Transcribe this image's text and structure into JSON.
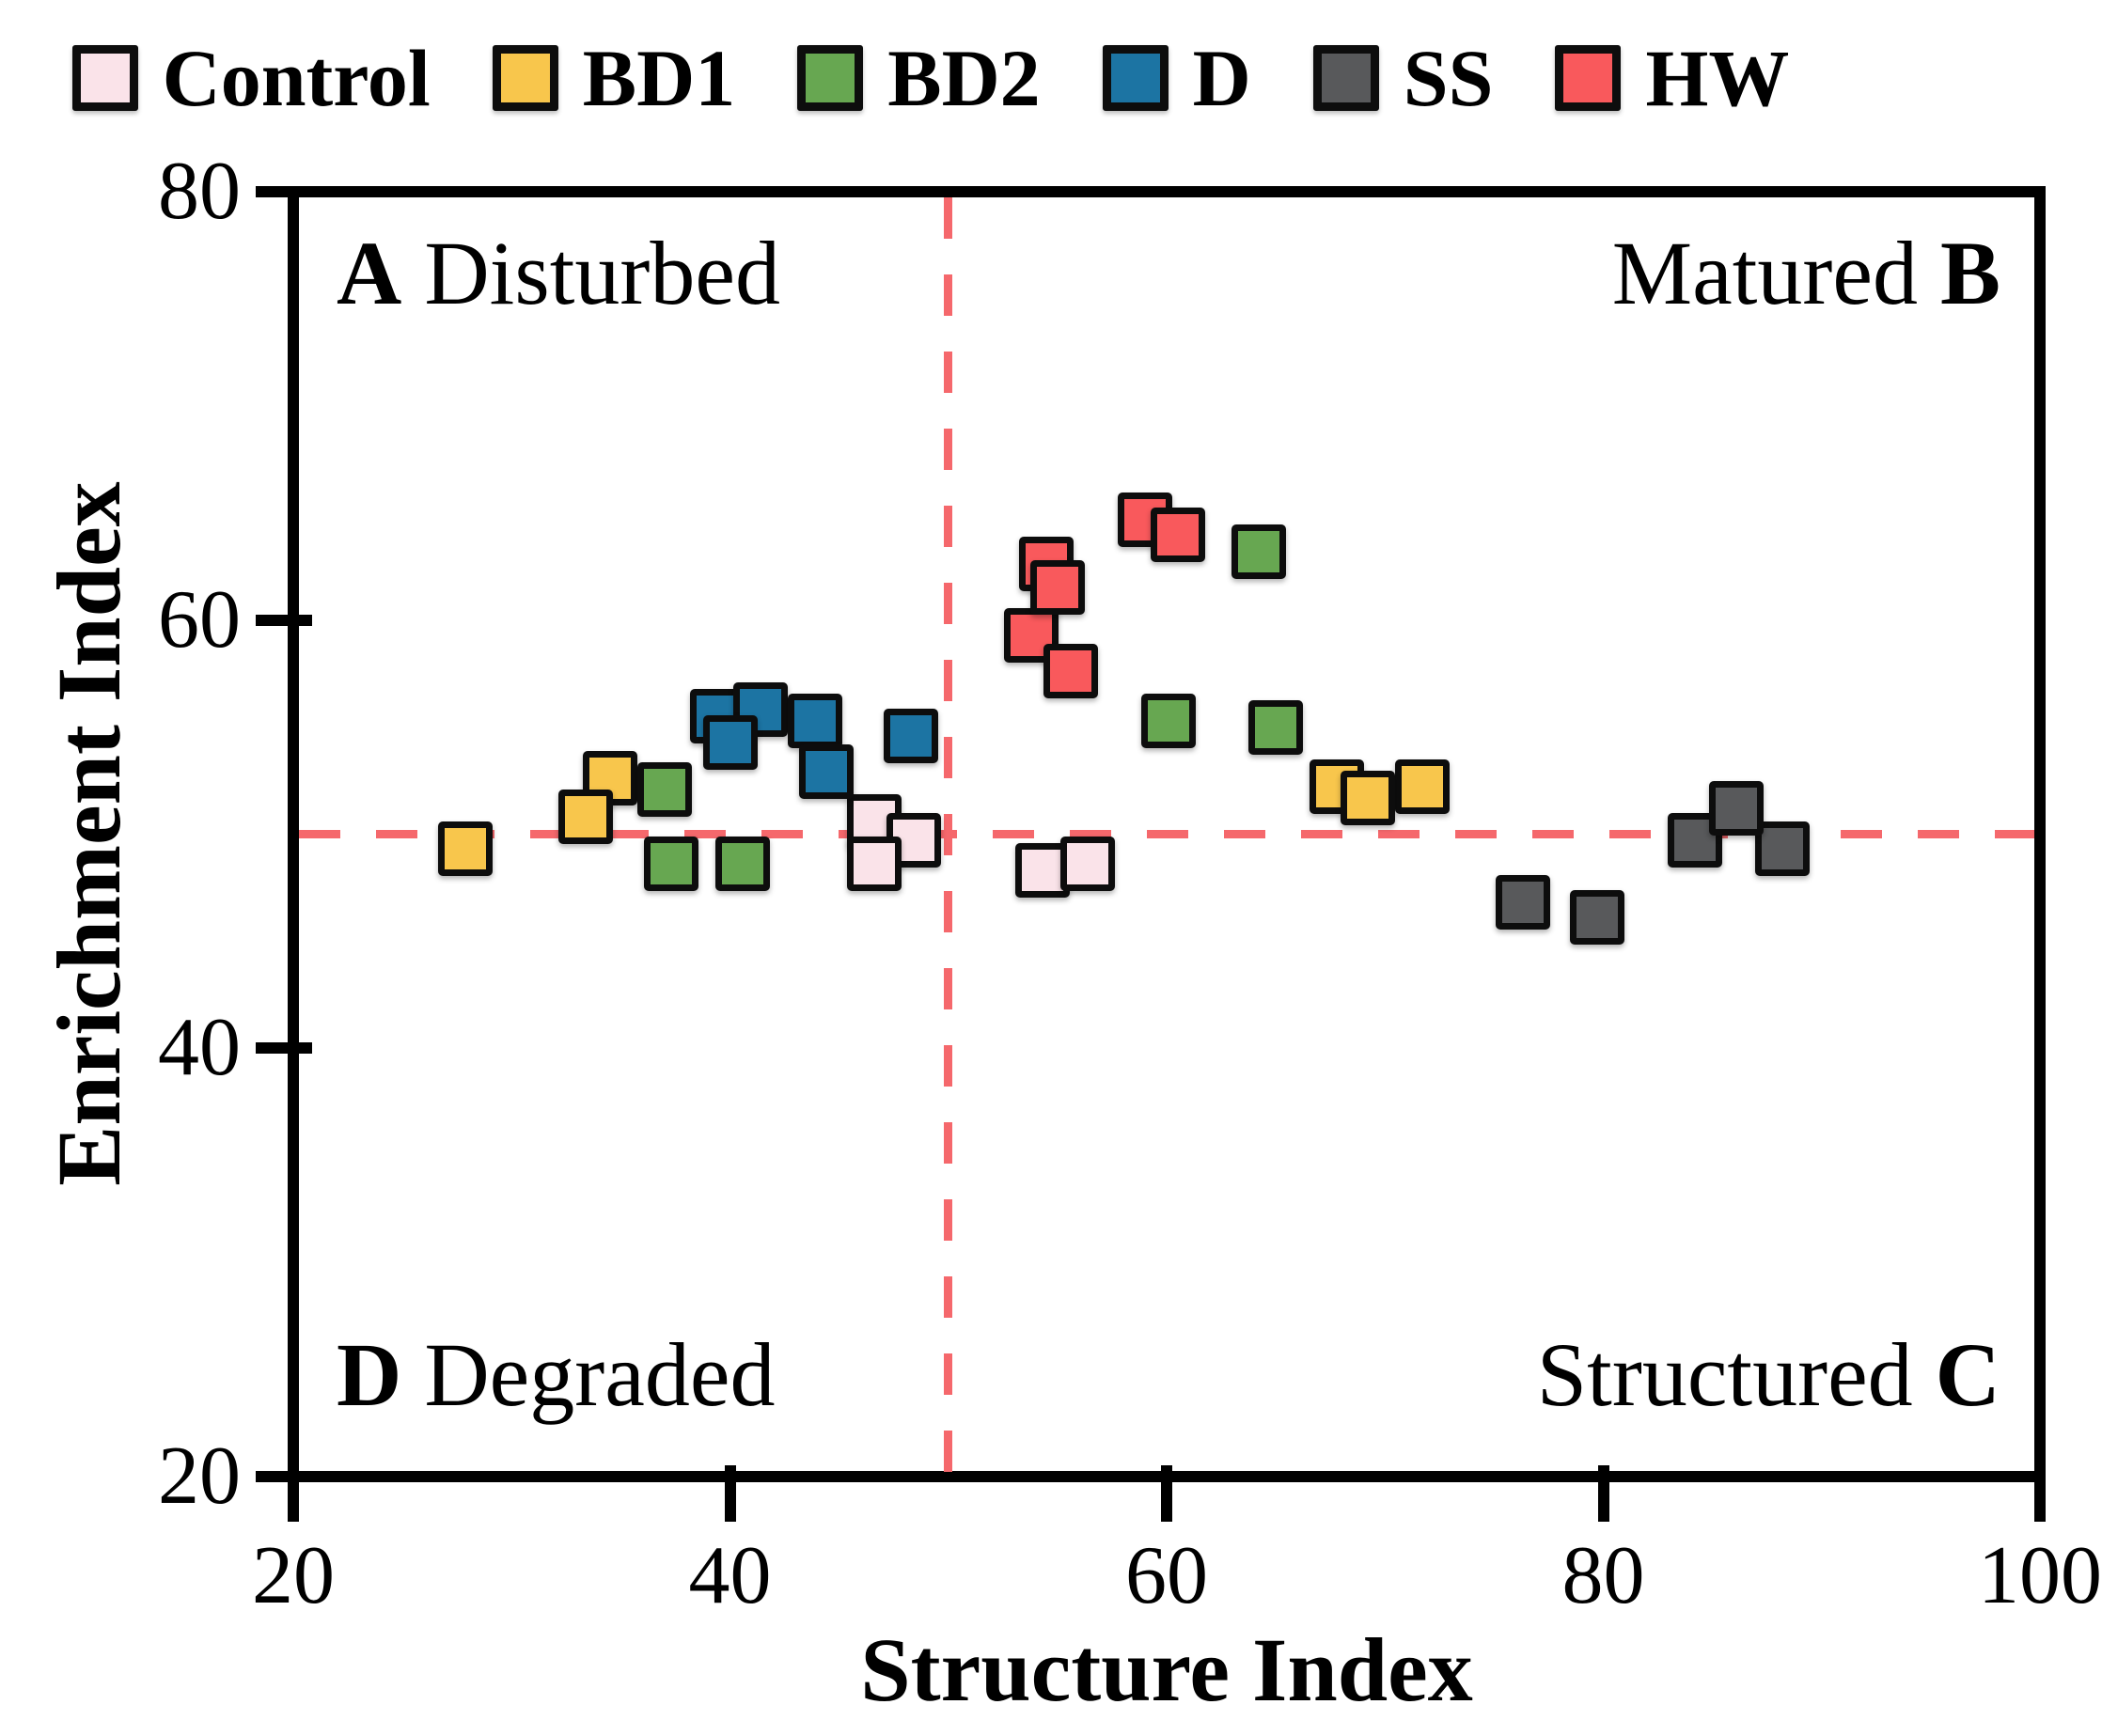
{
  "chart_data": {
    "type": "scatter",
    "title": "",
    "xlabel": "Structure Index",
    "ylabel": "Enrichment Index",
    "xlim": [
      20,
      100
    ],
    "ylim": [
      20,
      80
    ],
    "xticks": [
      20,
      40,
      60,
      80,
      100
    ],
    "yticks": [
      20,
      40,
      60,
      80
    ],
    "grid": false,
    "legend_position": "top",
    "marker_shape": "square",
    "reference_lines": {
      "x": 50,
      "y": 50,
      "style": "dashed",
      "color": "#f5686c"
    },
    "series": [
      {
        "name": "Control",
        "color": "#fae3e9",
        "points": [
          [
            46.6,
            50.6
          ],
          [
            48.4,
            49.7
          ],
          [
            46.6,
            48.6
          ],
          [
            54.3,
            48.3
          ],
          [
            56.4,
            48.6
          ]
        ]
      },
      {
        "name": "BD1",
        "color": "#f8c64c",
        "points": [
          [
            27.9,
            49.3
          ],
          [
            34.5,
            52.6
          ],
          [
            33.4,
            50.8
          ],
          [
            67.8,
            52.2
          ],
          [
            71.7,
            52.2
          ],
          [
            69.2,
            51.7
          ]
        ]
      },
      {
        "name": "BD2",
        "color": "#67a751",
        "points": [
          [
            37.0,
            52.1
          ],
          [
            37.3,
            48.6
          ],
          [
            40.6,
            48.6
          ],
          [
            60.1,
            55.3
          ],
          [
            65.0,
            55.0
          ],
          [
            64.2,
            63.2
          ]
        ]
      },
      {
        "name": "D",
        "color": "#1c74a3",
        "points": [
          [
            39.4,
            55.5
          ],
          [
            41.4,
            55.8
          ],
          [
            40.0,
            54.3
          ],
          [
            43.9,
            55.3
          ],
          [
            44.4,
            52.9
          ],
          [
            48.3,
            54.6
          ]
        ]
      },
      {
        "name": "SS",
        "color": "#58595b",
        "points": [
          [
            76.3,
            46.8
          ],
          [
            79.7,
            46.1
          ],
          [
            84.2,
            49.7
          ],
          [
            88.2,
            49.3
          ],
          [
            86.1,
            51.2
          ]
        ]
      },
      {
        "name": "HW",
        "color": "#f9595c",
        "points": [
          [
            54.5,
            62.6
          ],
          [
            53.8,
            59.3
          ],
          [
            55.0,
            61.5
          ],
          [
            55.6,
            57.6
          ],
          [
            59.0,
            64.7
          ],
          [
            60.5,
            64.0
          ]
        ]
      }
    ],
    "quadrant_labels": [
      {
        "letter": "A",
        "text": "Disturbed",
        "letter_position": "before",
        "corner": "top-left"
      },
      {
        "letter": "B",
        "text": "Matured",
        "letter_position": "after",
        "corner": "top-right"
      },
      {
        "letter": "C",
        "text": "Structured",
        "letter_position": "after",
        "corner": "bottom-right"
      },
      {
        "letter": "D",
        "text": "Degraded",
        "letter_position": "before",
        "corner": "bottom-left"
      }
    ]
  }
}
